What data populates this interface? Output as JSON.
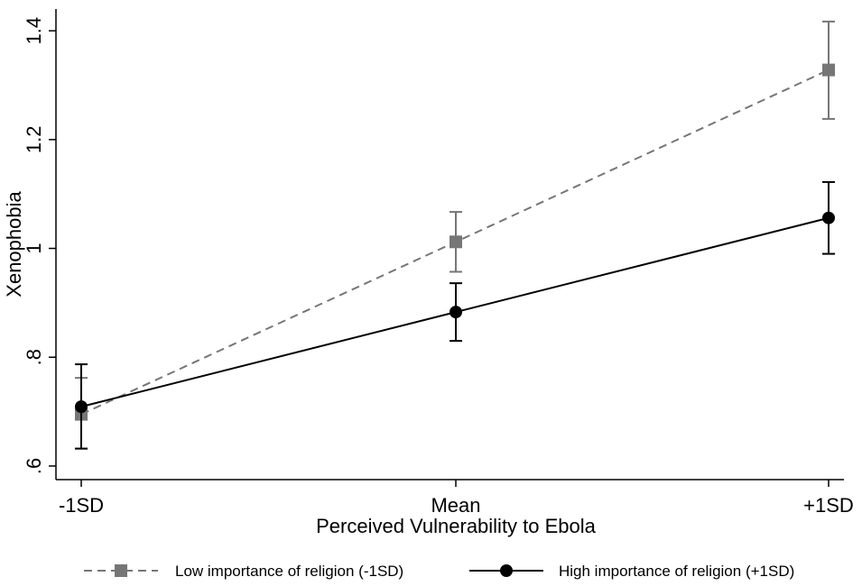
{
  "chart_data": {
    "type": "line",
    "xlabel": "Perceived Vulnerability to Ebola",
    "ylabel": "Xenophobia",
    "x": [
      0,
      1,
      2
    ],
    "xtick_labels": [
      "-1SD",
      "Mean",
      "+1SD"
    ],
    "xlim": [
      0,
      2
    ],
    "ylim": [
      0.575,
      1.44
    ],
    "yticks": [
      0.6,
      0.8,
      1.0,
      1.2,
      1.4
    ],
    "ytick_labels": [
      ".6",
      ".8",
      "1",
      "1.2",
      "1.4"
    ],
    "grid": false,
    "legend_placement": "bottom",
    "series": [
      {
        "name": "Low importance of religion (-1SD)",
        "values": [
          0.695,
          1.012,
          1.328
        ],
        "ci_low": [
          0.632,
          0.957,
          1.238
        ],
        "ci_high": [
          0.762,
          1.067,
          1.417
        ],
        "color": "#767676",
        "line_style": "dashed",
        "marker": "square"
      },
      {
        "name": "High importance of religion (+1SD)",
        "values": [
          0.709,
          0.883,
          1.056
        ],
        "ci_low": [
          0.632,
          0.83,
          0.99
        ],
        "ci_high": [
          0.787,
          0.936,
          1.122
        ],
        "color": "#000000",
        "line_style": "solid",
        "marker": "circle"
      }
    ]
  }
}
